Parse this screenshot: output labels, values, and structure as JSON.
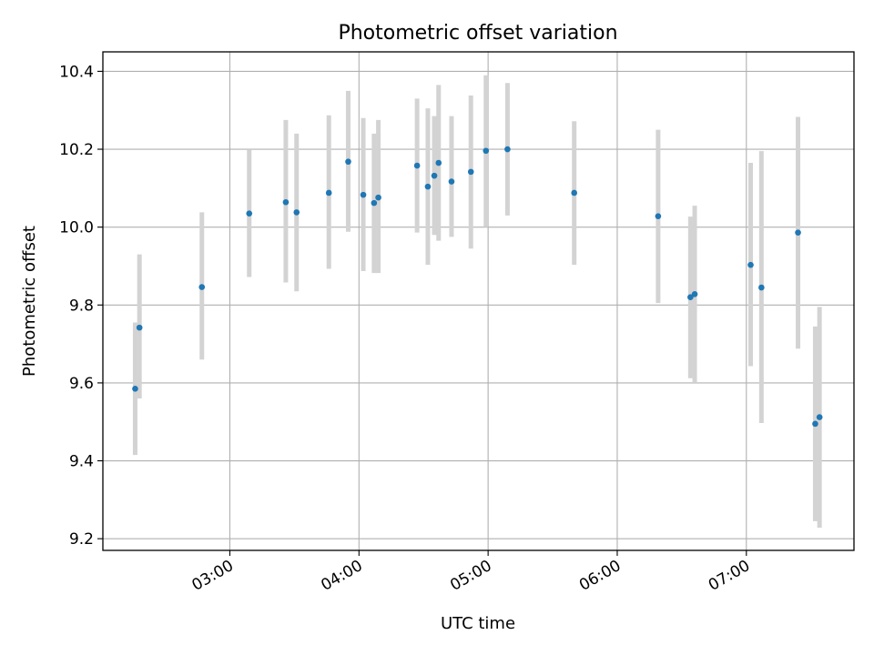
{
  "chart_data": {
    "type": "scatter",
    "title": "Photometric offset variation",
    "xlabel": "UTC time",
    "ylabel": "Photometric offset",
    "x_tick_labels": [
      "03:00",
      "04:00",
      "05:00",
      "06:00",
      "07:00"
    ],
    "x_tick_minutes": [
      180,
      240,
      300,
      360,
      420
    ],
    "xlim_minutes": [
      121,
      470
    ],
    "y_tick_labels": [
      "9.2",
      "9.4",
      "9.6",
      "9.8",
      "10.0",
      "10.2",
      "10.4"
    ],
    "y_ticks": [
      9.2,
      9.4,
      9.6,
      9.8,
      10.0,
      10.2,
      10.4
    ],
    "ylim": [
      9.17,
      10.45
    ],
    "grid": true,
    "marker_color": "#1f77b4",
    "errorbar_color": "#d3d3d3",
    "points": [
      {
        "time": "02:16",
        "y": 9.585,
        "err_low": 9.415,
        "err_high": 9.755
      },
      {
        "time": "02:18",
        "y": 9.742,
        "err_low": 9.56,
        "err_high": 9.93
      },
      {
        "time": "02:47",
        "y": 9.846,
        "err_low": 9.66,
        "err_high": 10.038
      },
      {
        "time": "03:09",
        "y": 10.035,
        "err_low": 9.872,
        "err_high": 10.198
      },
      {
        "time": "03:26",
        "y": 10.064,
        "err_low": 9.858,
        "err_high": 10.275
      },
      {
        "time": "03:31",
        "y": 10.038,
        "err_low": 9.835,
        "err_high": 10.24
      },
      {
        "time": "03:46",
        "y": 10.088,
        "err_low": 9.893,
        "err_high": 10.287
      },
      {
        "time": "03:55",
        "y": 10.168,
        "err_low": 9.988,
        "err_high": 10.35
      },
      {
        "time": "04:02",
        "y": 10.083,
        "err_low": 9.887,
        "err_high": 10.28
      },
      {
        "time": "04:07",
        "y": 10.062,
        "err_low": 9.882,
        "err_high": 10.24
      },
      {
        "time": "04:09",
        "y": 10.076,
        "err_low": 9.882,
        "err_high": 10.275
      },
      {
        "time": "04:27",
        "y": 10.158,
        "err_low": 9.986,
        "err_high": 10.33
      },
      {
        "time": "04:32",
        "y": 10.104,
        "err_low": 9.903,
        "err_high": 10.305
      },
      {
        "time": "04:35",
        "y": 10.132,
        "err_low": 9.98,
        "err_high": 10.285
      },
      {
        "time": "04:37",
        "y": 10.165,
        "err_low": 9.965,
        "err_high": 10.365
      },
      {
        "time": "04:43",
        "y": 10.117,
        "err_low": 9.975,
        "err_high": 10.285
      },
      {
        "time": "04:52",
        "y": 10.142,
        "err_low": 9.945,
        "err_high": 10.338
      },
      {
        "time": "04:59",
        "y": 10.196,
        "err_low": 10.0,
        "err_high": 10.39
      },
      {
        "time": "05:09",
        "y": 10.2,
        "err_low": 10.03,
        "err_high": 10.37
      },
      {
        "time": "05:40",
        "y": 10.088,
        "err_low": 9.903,
        "err_high": 10.272
      },
      {
        "time": "06:19",
        "y": 10.028,
        "err_low": 9.805,
        "err_high": 10.25
      },
      {
        "time": "06:34",
        "y": 9.82,
        "err_low": 9.612,
        "err_high": 10.027
      },
      {
        "time": "06:36",
        "y": 9.828,
        "err_low": 9.6,
        "err_high": 10.055
      },
      {
        "time": "07:02",
        "y": 9.903,
        "err_low": 9.643,
        "err_high": 10.165
      },
      {
        "time": "07:07",
        "y": 9.845,
        "err_low": 9.497,
        "err_high": 10.195
      },
      {
        "time": "07:24",
        "y": 9.986,
        "err_low": 9.688,
        "err_high": 10.283
      },
      {
        "time": "07:32",
        "y": 9.495,
        "err_low": 9.245,
        "err_high": 9.745
      },
      {
        "time": "07:34",
        "y": 9.512,
        "err_low": 9.228,
        "err_high": 9.795
      }
    ]
  }
}
